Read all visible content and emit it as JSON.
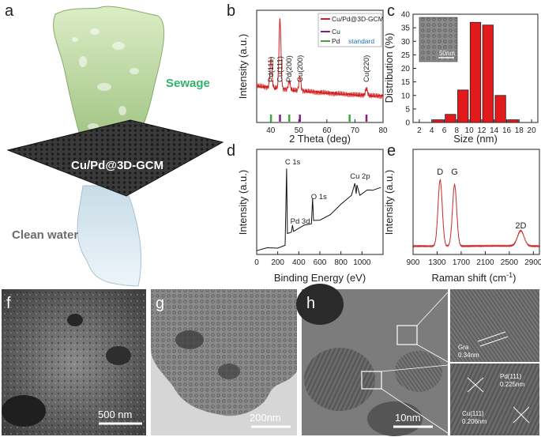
{
  "panels": {
    "a": {
      "label": "a",
      "sewage": "Sewage",
      "material": "Cu/Pd@3D-GCM",
      "clean_water": "Clean water",
      "colors": {
        "sewage": "#33b26a",
        "clean": "#6b6b6b"
      }
    },
    "f": {
      "label": "f",
      "scale": "500 nm"
    },
    "g": {
      "label": "g",
      "scale": "200nm"
    },
    "h": {
      "label": "h",
      "scale": "10nm",
      "gra": "Gra",
      "gra_d": "0.34nm",
      "pd": "Pd(111)",
      "pd_d": "0.225nm",
      "cu": "Cu(111)",
      "cu_d": "0.206nm"
    }
  },
  "chart_data": [
    {
      "id": "b",
      "label": "b",
      "type": "line",
      "xlabel": "2 Theta (deg)",
      "ylabel": "Intensity (a.u.)",
      "xlim": [
        35,
        80
      ],
      "xticks": [
        40,
        50,
        60,
        70,
        80
      ],
      "legend": [
        "Cu/Pd@3D-GCM",
        "Cu",
        "Pd"
      ],
      "legend_note": "standard",
      "legend_position": "top-right",
      "colors": {
        "Cu/Pd@3D-GCM": "#d62020",
        "Cu": "#8b1a8b",
        "Pd": "#3aaa35"
      },
      "peak_labels": [
        {
          "x": 40.1,
          "text": "Pd(111)"
        },
        {
          "x": 43.3,
          "text": "Cu(111)"
        },
        {
          "x": 46.6,
          "text": "Pd(200)"
        },
        {
          "x": 50.4,
          "text": "Cu(200)"
        },
        {
          "x": 74.1,
          "text": "Cu(220)"
        }
      ],
      "series": [
        {
          "name": "Cu/Pd@3D-GCM",
          "peaks": [
            [
              40.1,
              0.42
            ],
            [
              43.3,
              1.0
            ],
            [
              46.6,
              0.12
            ],
            [
              50.4,
              0.2
            ],
            [
              74.1,
              0.1
            ]
          ],
          "baseline": 0.22
        }
      ],
      "reference_bars": {
        "Cu": [
          43.3,
          50.4,
          74.1
        ],
        "Pd": [
          40.1,
          46.6,
          68.1
        ]
      }
    },
    {
      "id": "c",
      "label": "c",
      "type": "bar",
      "xlabel": "Size (nm)",
      "ylabel": "Distribution (%)",
      "xlim": [
        1,
        21
      ],
      "ylim": [
        0,
        40
      ],
      "xticks": [
        2,
        4,
        6,
        8,
        10,
        12,
        14,
        16,
        18,
        20
      ],
      "yticks": [
        0,
        5,
        10,
        15,
        20,
        25,
        30,
        35,
        40
      ],
      "categories": [
        5,
        7,
        9,
        11,
        13,
        15,
        17
      ],
      "values": [
        1,
        3,
        12,
        37,
        36,
        10,
        1
      ],
      "bar_color": "#e31a1c",
      "inset_scale": "50nm"
    },
    {
      "id": "d",
      "label": "d",
      "type": "line",
      "xlabel": "Binding Energy (eV)",
      "ylabel": "Intensity (a.u.)",
      "xlim": [
        0,
        1200
      ],
      "xticks": [
        0,
        200,
        400,
        600,
        800,
        1000
      ],
      "peak_labels": [
        {
          "x": 284,
          "text": "C 1s"
        },
        {
          "x": 335,
          "text": "Pd 3d"
        },
        {
          "x": 531,
          "text": "O 1s"
        },
        {
          "x": 932,
          "text": "Cu 2p"
        }
      ],
      "series": [
        {
          "name": "",
          "points": [
            [
              0,
              0.02
            ],
            [
              100,
              0.03
            ],
            [
              200,
              0.05
            ],
            [
              270,
              0.06
            ],
            [
              284,
              1.0
            ],
            [
              292,
              0.2
            ],
            [
              330,
              0.24
            ],
            [
              340,
              0.3
            ],
            [
              350,
              0.25
            ],
            [
              450,
              0.3
            ],
            [
              520,
              0.34
            ],
            [
              531,
              0.62
            ],
            [
              540,
              0.38
            ],
            [
              600,
              0.36
            ],
            [
              700,
              0.45
            ],
            [
              800,
              0.55
            ],
            [
              900,
              0.68
            ],
            [
              932,
              0.8
            ],
            [
              945,
              0.7
            ],
            [
              952,
              0.78
            ],
            [
              980,
              0.68
            ],
            [
              1050,
              0.72
            ],
            [
              1100,
              0.74
            ],
            [
              1180,
              0.75
            ]
          ]
        }
      ],
      "line_color": "#111111"
    },
    {
      "id": "e",
      "label": "e",
      "type": "line",
      "xlabel": "Raman shift (cm",
      "xlabel_sup": "-1",
      "xlabel_end": ")",
      "ylabel": "Intensity (a.u.)",
      "xlim": [
        900,
        3000
      ],
      "xticks": [
        900,
        1300,
        1700,
        2100,
        2500,
        2900
      ],
      "peak_labels": [
        {
          "x": 1350,
          "text": "D"
        },
        {
          "x": 1590,
          "text": "G"
        },
        {
          "x": 2690,
          "text": "2D"
        }
      ],
      "series": [
        {
          "name": "",
          "peaks": [
            [
              1350,
              0.95,
              35
            ],
            [
              1590,
              0.88,
              35
            ],
            [
              2690,
              0.22,
              55
            ]
          ],
          "baseline": 0.03
        }
      ],
      "line_color": "#c62828"
    }
  ]
}
